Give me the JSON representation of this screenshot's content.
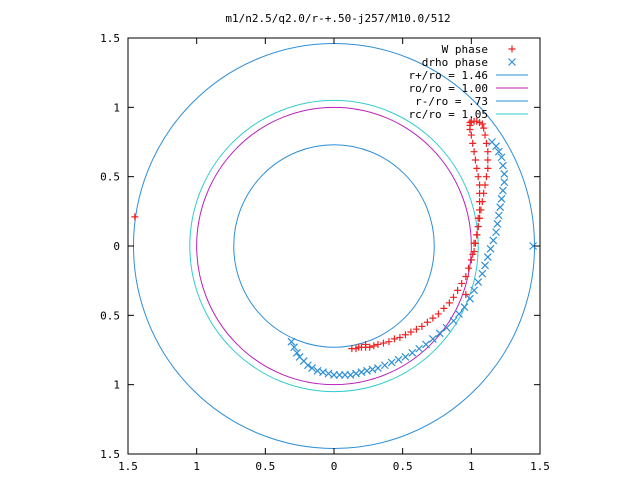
{
  "chart_data": {
    "type": "scatter",
    "title": "m1/n2.5/q2.0/r-+.50-j257/M10.0/512",
    "xlabel": "",
    "ylabel": "",
    "xlim": [
      -1.5,
      1.5
    ],
    "ylim": [
      -1.5,
      1.5
    ],
    "aspect": "equal",
    "grid": false,
    "legend": "top-right",
    "x_ticks": [
      {
        "v": -1.5,
        "label": "1.5"
      },
      {
        "v": -1.0,
        "label": "1"
      },
      {
        "v": -0.5,
        "label": "0.5"
      },
      {
        "v": 0.0,
        "label": "0"
      },
      {
        "v": 0.5,
        "label": "0.5"
      },
      {
        "v": 1.0,
        "label": "1"
      },
      {
        "v": 1.5,
        "label": "1.5"
      }
    ],
    "y_ticks": [
      {
        "v": 1.5,
        "label": "1.5"
      },
      {
        "v": 1.0,
        "label": "1"
      },
      {
        "v": 0.5,
        "label": "0.5"
      },
      {
        "v": 0.0,
        "label": "0"
      },
      {
        "v": -0.5,
        "label": "0.5"
      },
      {
        "v": -1.0,
        "label": "1"
      },
      {
        "v": -1.5,
        "label": "1.5"
      }
    ],
    "circles": [
      {
        "name": "r+/ro = 1.46",
        "r": 1.46,
        "color": "#2e8fd6"
      },
      {
        "name": "ro/ro = 1.00",
        "r": 1.0,
        "color": "#b820b8"
      },
      {
        "name": "r-/ro = .73",
        "r": 0.73,
        "color": "#2e8fd6"
      },
      {
        "name": "rc/ro = 1.05",
        "r": 1.05,
        "color": "#33cccc"
      }
    ],
    "series": [
      {
        "name": "W phase",
        "marker": "plus",
        "color": "#ee2222",
        "x": [
          0.13,
          0.16,
          0.18,
          0.2,
          0.23,
          0.26,
          0.29,
          0.32,
          0.36,
          0.4,
          0.44,
          0.48,
          0.52,
          0.56,
          0.6,
          0.64,
          0.68,
          0.72,
          0.76,
          0.8,
          0.84,
          0.87,
          0.9,
          0.93,
          0.96,
          0.98,
          1.0,
          1.02,
          1.03,
          1.04,
          1.05,
          1.05,
          1.06,
          1.06,
          1.06,
          1.06,
          1.05,
          1.04,
          1.03,
          1.02,
          1.01,
          1.0,
          0.99,
          0.99,
          0.99,
          1.0,
          1.02,
          1.04,
          1.06,
          1.08,
          1.09,
          1.1,
          1.11,
          1.12,
          1.12,
          1.12,
          1.11,
          1.1,
          1.09,
          1.08,
          1.07,
          1.06,
          1.05,
          1.04,
          1.02,
          1.01,
          0.96,
          -1.45,
          0.23
        ],
        "y": [
          -0.74,
          -0.74,
          -0.73,
          -0.73,
          -0.73,
          -0.73,
          -0.72,
          -0.71,
          -0.7,
          -0.69,
          -0.67,
          -0.66,
          -0.64,
          -0.62,
          -0.6,
          -0.58,
          -0.55,
          -0.52,
          -0.49,
          -0.45,
          -0.41,
          -0.37,
          -0.32,
          -0.27,
          -0.22,
          -0.16,
          -0.1,
          -0.04,
          0.02,
          0.08,
          0.14,
          0.2,
          0.26,
          0.32,
          0.38,
          0.44,
          0.5,
          0.56,
          0.62,
          0.68,
          0.74,
          0.8,
          0.84,
          0.87,
          0.89,
          0.9,
          0.9,
          0.9,
          0.89,
          0.88,
          0.85,
          0.8,
          0.74,
          0.68,
          0.62,
          0.56,
          0.5,
          0.44,
          0.38,
          0.32,
          0.26,
          0.2,
          0.14,
          0.08,
          0.02,
          -0.06,
          -0.35,
          0.21,
          -0.71
        ]
      },
      {
        "name": "drho phase",
        "marker": "cross",
        "color": "#2e8fd6",
        "x": [
          -0.31,
          -0.29,
          -0.27,
          -0.25,
          -0.22,
          -0.19,
          -0.16,
          -0.12,
          -0.08,
          -0.04,
          0.0,
          0.04,
          0.08,
          0.12,
          0.16,
          0.2,
          0.24,
          0.28,
          0.32,
          0.37,
          0.42,
          0.47,
          0.52,
          0.57,
          0.62,
          0.67,
          0.72,
          0.77,
          0.82,
          0.87,
          0.91,
          0.95,
          0.99,
          1.02,
          1.05,
          1.08,
          1.1,
          1.12,
          1.14,
          1.16,
          1.18,
          1.19,
          1.2,
          1.21,
          1.22,
          1.23,
          1.24,
          1.24,
          1.23,
          1.22,
          1.2,
          1.18,
          1.15,
          1.45
        ],
        "y": [
          -0.69,
          -0.73,
          -0.77,
          -0.8,
          -0.83,
          -0.86,
          -0.88,
          -0.9,
          -0.91,
          -0.92,
          -0.93,
          -0.93,
          -0.93,
          -0.93,
          -0.92,
          -0.91,
          -0.9,
          -0.89,
          -0.88,
          -0.86,
          -0.84,
          -0.82,
          -0.8,
          -0.77,
          -0.74,
          -0.71,
          -0.67,
          -0.63,
          -0.59,
          -0.54,
          -0.49,
          -0.44,
          -0.38,
          -0.32,
          -0.26,
          -0.2,
          -0.14,
          -0.08,
          -0.02,
          0.04,
          0.1,
          0.16,
          0.22,
          0.28,
          0.34,
          0.4,
          0.46,
          0.52,
          0.58,
          0.64,
          0.68,
          0.72,
          0.75,
          0.0
        ]
      }
    ]
  }
}
